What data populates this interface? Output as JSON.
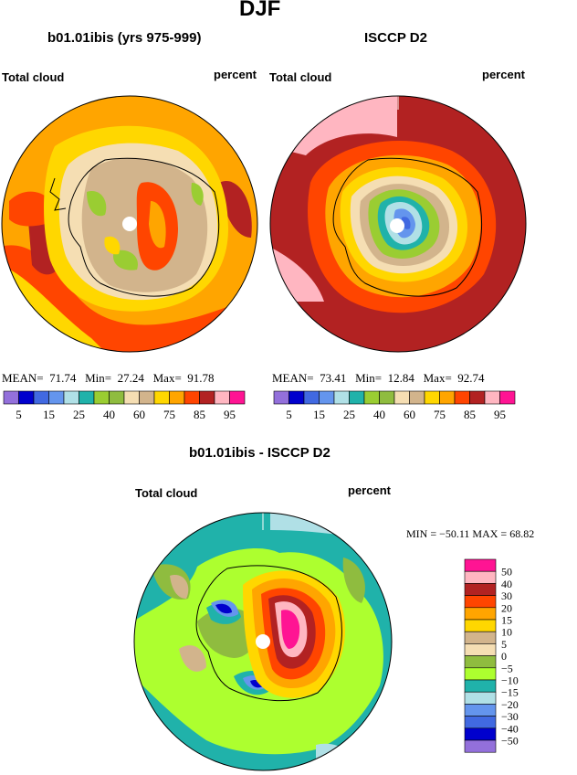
{
  "season": "DJF",
  "left_map": {
    "title": "b01.01ibis (yrs 975-999)",
    "variable": "Total cloud",
    "units": "percent",
    "mean_label": "MEAN=",
    "mean": "71.74",
    "min_label": "Min=",
    "min": "27.24",
    "max_label": "Max=",
    "max": "91.78"
  },
  "right_map": {
    "title": "ISCCP D2",
    "variable": "Total cloud",
    "units": "percent",
    "mean_label": "MEAN=",
    "mean": "73.41",
    "min_label": "Min=",
    "min": "12.84",
    "max_label": "Max=",
    "max": "92.74"
  },
  "abs_colorbar": {
    "colors": [
      "#9370db",
      "#0000cd",
      "#4169e1",
      "#6495ed",
      "#b0e0e6",
      "#20b2aa",
      "#9acd32",
      "#8fbc3f",
      "#f5deb3",
      "#d2b48c",
      "#ffd700",
      "#ffa500",
      "#ff4500",
      "#b22222",
      "#ffb6c1",
      "#ff1493"
    ],
    "labels": [
      "5",
      "15",
      "25",
      "40",
      "60",
      "75",
      "85",
      "95"
    ]
  },
  "diff_map": {
    "title": "b01.01ibis - ISCCP D2",
    "variable": "Total cloud",
    "units": "percent",
    "minmax_text": "MIN = −50.11  MAX =  68.82"
  },
  "diff_colorbar": {
    "colors": [
      "#ff1493",
      "#ffb6c1",
      "#b22222",
      "#ff4500",
      "#ffa500",
      "#ffd700",
      "#d2b48c",
      "#f5deb3",
      "#8fbc3f",
      "#adff2f",
      "#20b2aa",
      "#b0e0e6",
      "#6495ed",
      "#4169e1",
      "#0000cd",
      "#9370db"
    ],
    "labels": [
      "50",
      "40",
      "30",
      "20",
      "15",
      "10",
      "5",
      "0",
      "−5",
      "−10",
      "−15",
      "−20",
      "−30",
      "−40",
      "−50"
    ]
  }
}
